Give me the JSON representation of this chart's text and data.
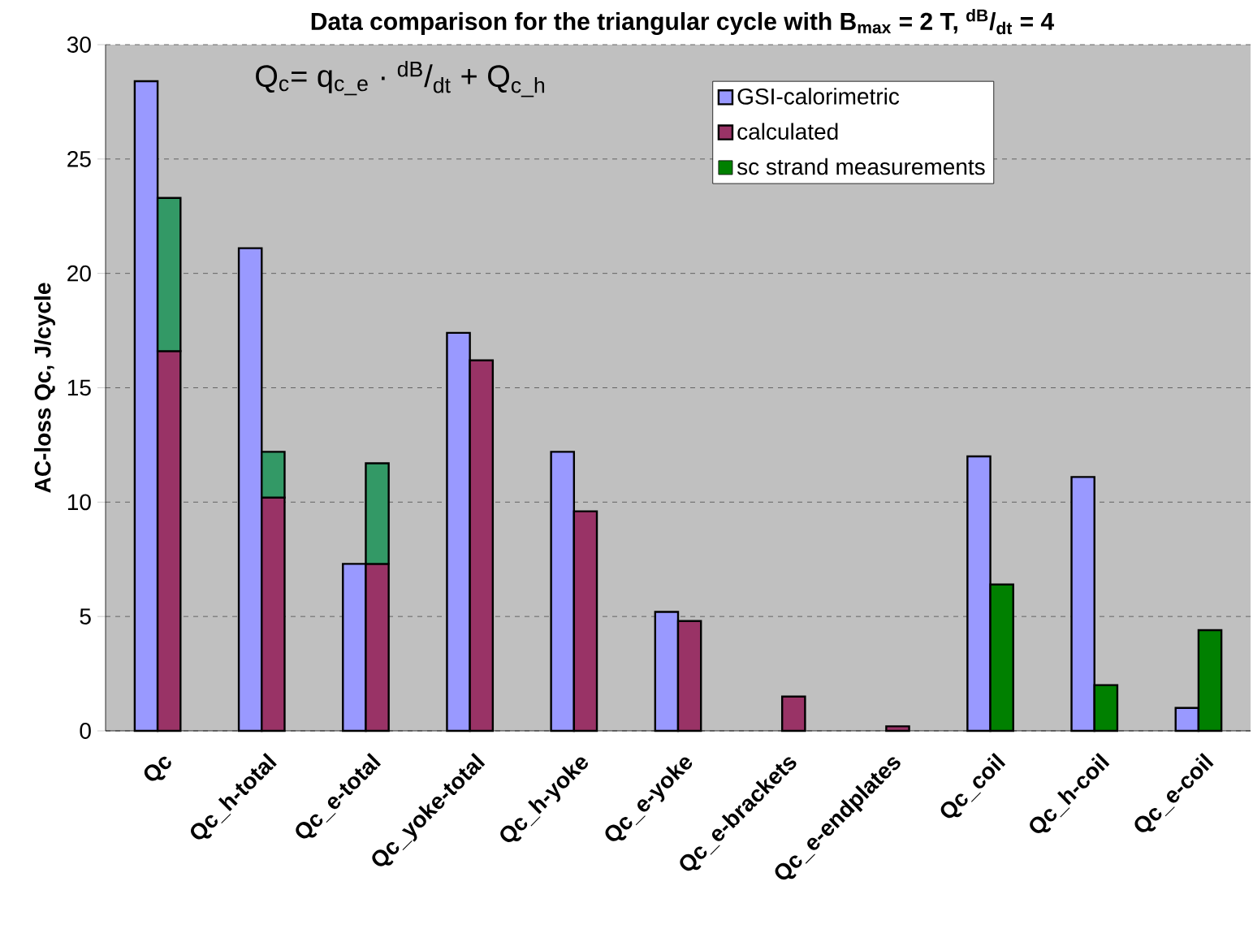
{
  "chart_data": {
    "type": "bar",
    "title": "Data comparison for the triangular cycle with B$_{max}$ = 2 T, $^{dB}$/$_{dt}$ = 4",
    "ylabel": "AC-loss Qc, J/cycle",
    "annotations": [
      "Q$_{c}$= q$_{c_e}$ · $^{dB}$/$_{dt}$ + Q$_{c_h}$"
    ],
    "categories": [
      "Qc",
      "Qc_h-total",
      "Qc_e-total",
      "Qc_yoke-total",
      "Qc_h-yoke",
      "Qc_e-yoke",
      "Qc_e-brackets",
      "Qc_e-endplates",
      "Qc_coil",
      "Qc_h-coil",
      "Qc_e-coil"
    ],
    "series": [
      {
        "name": "GSI-calorimetric",
        "color": "#9999ff",
        "values": [
          28.4,
          21.1,
          7.3,
          17.4,
          12.2,
          5.2,
          null,
          null,
          12.0,
          11.1,
          1.0
        ]
      },
      {
        "name": "calculated",
        "color": "#993366",
        "values": [
          16.6,
          10.2,
          7.3,
          16.2,
          9.6,
          4.8,
          1.5,
          0.2,
          null,
          null,
          null
        ]
      },
      {
        "name": "sc strand measurements",
        "color": "#008000",
        "base": [
          16.6,
          10.2,
          7.3,
          null,
          null,
          null,
          null,
          null,
          0,
          0,
          0
        ],
        "colors": [
          "#339966",
          "#339966",
          "#339966",
          null,
          null,
          null,
          null,
          null,
          "#008000",
          "#008000",
          "#008000"
        ],
        "values": [
          6.7,
          2.0,
          4.4,
          null,
          null,
          null,
          null,
          null,
          6.4,
          2.0,
          4.4
        ]
      }
    ],
    "ylim": [
      0,
      30
    ],
    "yticks": [
      0,
      5,
      10,
      15,
      20,
      25,
      30
    ],
    "grid": "y",
    "legend": "top right"
  }
}
